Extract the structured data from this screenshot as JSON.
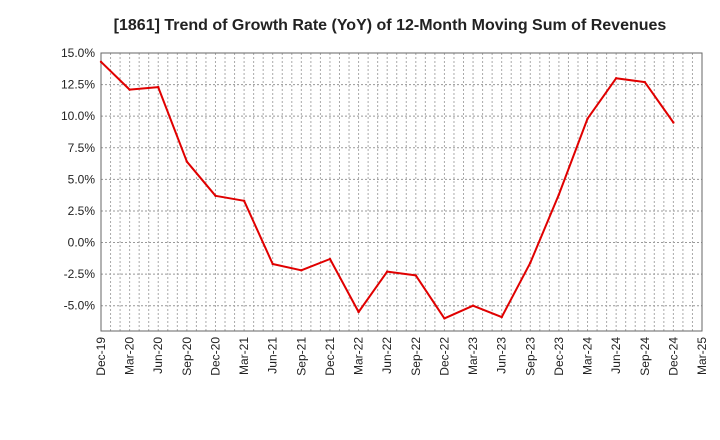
{
  "chart_data": {
    "type": "line",
    "title": "[1861]  Trend of Growth Rate (YoY) of 12-Month Moving Sum of Revenues",
    "xlabel": "",
    "ylabel": "",
    "x": [
      "Dec-19",
      "Mar-20",
      "Jun-20",
      "Sep-20",
      "Dec-20",
      "Mar-21",
      "Jun-21",
      "Sep-21",
      "Dec-21",
      "Mar-22",
      "Jun-22",
      "Sep-22",
      "Dec-22",
      "Mar-23",
      "Jun-23",
      "Sep-23",
      "Dec-23",
      "Mar-24",
      "Jun-24",
      "Sep-24",
      "Dec-24",
      "Mar-25"
    ],
    "y_tick_labels": [
      "15.0%",
      "12.5%",
      "10.0%",
      "7.5%",
      "5.0%",
      "2.5%",
      "0.0%",
      "-2.5%",
      "-5.0%"
    ],
    "ylim": [
      -7.0,
      15.0
    ],
    "grid": true,
    "legend": "none",
    "series": [
      {
        "color": "#e00000",
        "values": [
          14.3,
          12.1,
          12.3,
          6.4,
          3.7,
          3.3,
          -1.7,
          -2.2,
          -1.3,
          -5.5,
          -2.3,
          -2.6,
          -6.0,
          -5.0,
          -5.9,
          -1.6,
          3.8,
          9.8,
          13.0,
          12.7,
          9.5,
          null
        ]
      }
    ]
  }
}
